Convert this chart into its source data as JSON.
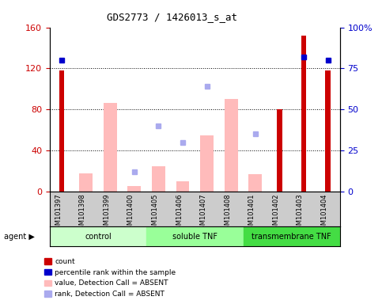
{
  "title": "GDS2773 / 1426013_s_at",
  "samples": [
    "GSM101397",
    "GSM101398",
    "GSM101399",
    "GSM101400",
    "GSM101405",
    "GSM101406",
    "GSM101407",
    "GSM101408",
    "GSM101401",
    "GSM101402",
    "GSM101403",
    "GSM101404"
  ],
  "groups": [
    {
      "name": "control",
      "color": "#ccffcc",
      "start": 0,
      "end": 4
    },
    {
      "name": "soluble TNF",
      "color": "#99ff99",
      "start": 4,
      "end": 8
    },
    {
      "name": "transmembrane TNF",
      "color": "#44dd44",
      "start": 8,
      "end": 12
    }
  ],
  "count_values": [
    118,
    null,
    null,
    null,
    null,
    null,
    null,
    null,
    null,
    80,
    152,
    118
  ],
  "percentile_values": [
    80,
    null,
    null,
    null,
    null,
    null,
    null,
    null,
    null,
    null,
    82,
    80
  ],
  "absent_value_bars": [
    null,
    18,
    86,
    5,
    25,
    10,
    55,
    90,
    17,
    null,
    null,
    null
  ],
  "absent_rank_dots": [
    null,
    null,
    null,
    12,
    40,
    30,
    64,
    null,
    35,
    null,
    null,
    null
  ],
  "left_ylim": [
    0,
    160
  ],
  "right_ylim": [
    0,
    100
  ],
  "left_yticks": [
    0,
    40,
    80,
    120,
    160
  ],
  "right_yticks": [
    0,
    25,
    50,
    75,
    100
  ],
  "left_yticklabels": [
    "0",
    "40",
    "80",
    "120",
    "160"
  ],
  "right_yticklabels": [
    "0",
    "25",
    "50",
    "75",
    "100%"
  ],
  "count_color": "#cc0000",
  "percentile_color": "#0000cc",
  "absent_value_color": "#ffbbbb",
  "absent_rank_color": "#aaaaee",
  "bg_color": "#cccccc",
  "legend_items": [
    {
      "label": "count",
      "color": "#cc0000"
    },
    {
      "label": "percentile rank within the sample",
      "color": "#0000cc"
    },
    {
      "label": "value, Detection Call = ABSENT",
      "color": "#ffbbbb"
    },
    {
      "label": "rank, Detection Call = ABSENT",
      "color": "#aaaaee"
    }
  ]
}
